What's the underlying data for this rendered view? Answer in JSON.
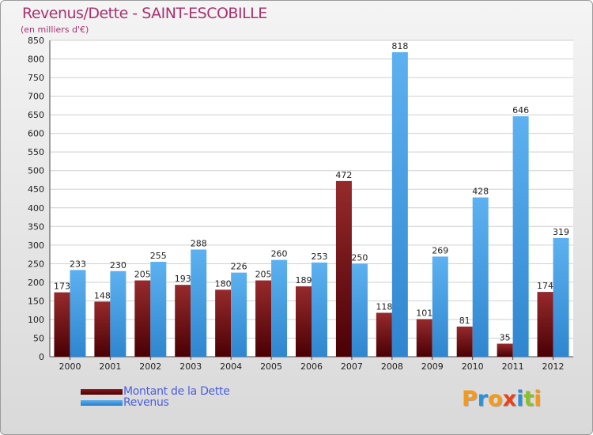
{
  "chart_data": {
    "type": "bar",
    "title": "Revenus/Dette - SAINT-ESCOBILLE",
    "subtitle": "(en milliers d'€)",
    "xlabel": "",
    "ylabel": "",
    "ylim": [
      0,
      850
    ],
    "yticks": [
      0,
      50,
      100,
      150,
      200,
      250,
      300,
      350,
      400,
      450,
      500,
      550,
      600,
      650,
      700,
      750,
      800,
      850
    ],
    "grid": true,
    "categories": [
      "2000",
      "2001",
      "2002",
      "2003",
      "2004",
      "2005",
      "2006",
      "2007",
      "2008",
      "2009",
      "2010",
      "2011",
      "2012"
    ],
    "series": [
      {
        "name": "Montant de la Dette",
        "color": "#7a1416",
        "values": [
          173,
          148,
          205,
          193,
          180,
          205,
          189,
          472,
          118,
          101,
          81,
          35,
          174
        ]
      },
      {
        "name": "Revenus",
        "color": "#3d97dc",
        "values": [
          233,
          230,
          255,
          288,
          226,
          260,
          253,
          250,
          818,
          269,
          428,
          646,
          319
        ]
      }
    ]
  },
  "legend": {
    "debt_label": "Montant de la Dette",
    "revenue_label": "Revenus"
  },
  "logo": {
    "letters": [
      "P",
      "r",
      "o",
      "x",
      "i",
      "t",
      "i"
    ],
    "colors": [
      "#f39a1e",
      "#2c8fd8",
      "#f39a1e",
      "#e8421c",
      "#2c8fd8",
      "#8bbf2c",
      "#f39a1e"
    ]
  }
}
